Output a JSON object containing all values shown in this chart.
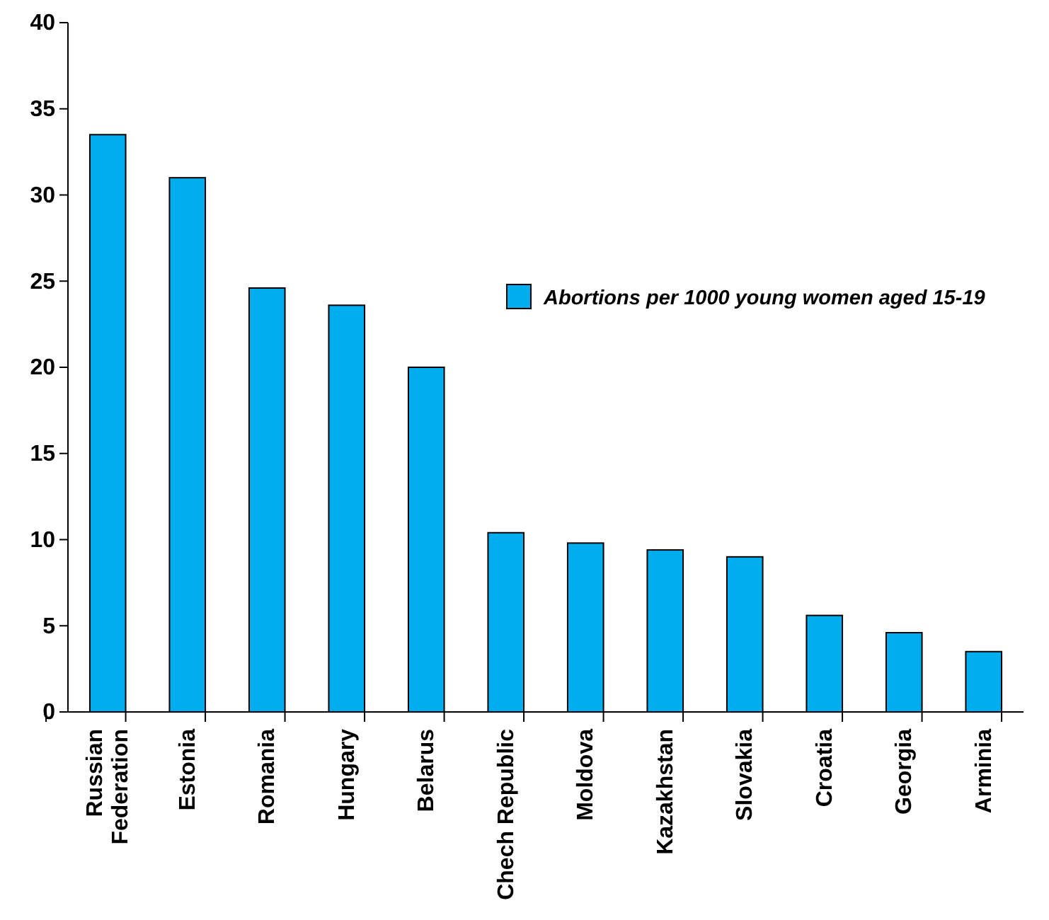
{
  "chart_data": {
    "type": "bar",
    "categories": [
      "Russian\nFederation",
      "Estonia",
      "Romania",
      "Hungary",
      "Belarus",
      "Chech Republic",
      "Moldova",
      "Kazakhstan",
      "Slovakia",
      "Croatia",
      "Georgia",
      "Arminia"
    ],
    "series": [
      {
        "name": "Abortions per 1000 young women aged 15-19",
        "color": "#00aeef",
        "values": [
          33.5,
          31.0,
          24.6,
          23.6,
          20.0,
          10.4,
          9.8,
          9.4,
          9.0,
          5.6,
          4.6,
          3.5
        ]
      }
    ],
    "ylim": [
      0,
      40
    ],
    "yticks": [
      0,
      5,
      10,
      15,
      20,
      25,
      30,
      35,
      40
    ],
    "grid": false,
    "legend": "right"
  }
}
